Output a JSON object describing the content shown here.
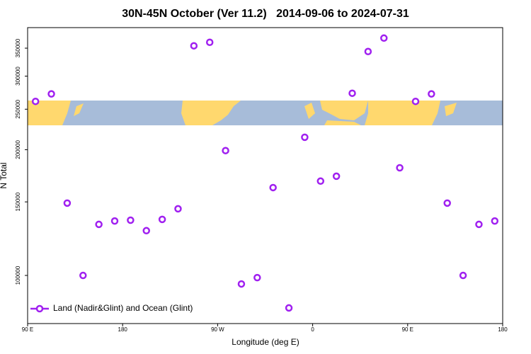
{
  "chart_data": {
    "type": "scatter",
    "title": "30N-45N October (Ver 11.2)   2014-09-06 to 2024-07-31",
    "x_label": "Longitude (deg E)",
    "y_label": "N Total",
    "series": [
      {
        "name": "Land (Nadir&Glint) and Ocean (Glint)",
        "color": "#a020f0",
        "x": [
          97.5,
          112.5,
          127.5,
          142.5,
          157.5,
          172.5,
          187.5,
          202.5,
          217.5,
          232.5,
          247.5,
          262.5,
          277.5,
          292.5,
          307.5,
          322.5,
          337.5,
          352.5,
          367.5,
          382.5,
          397.5,
          412.5,
          427.5,
          442.5,
          457.5,
          472.5,
          487.5,
          502.5,
          517.5,
          532.5
        ],
        "values": [
          261000,
          272000,
          149000,
          100000,
          132500,
          135000,
          135600,
          128000,
          136200,
          144400,
          354600,
          361500,
          199000,
          95400,
          98800,
          162300,
          83600,
          214200,
          168200,
          172800,
          273000,
          343600,
          370000,
          181000,
          261000,
          272000,
          149000,
          100000,
          132500,
          135000
        ]
      }
    ],
    "xlim": [
      90,
      540
    ],
    "xticks": [
      {
        "value": 90,
        "label": "90 E"
      },
      180,
      {
        "value": 270,
        "label": "90 W"
      },
      {
        "value": 360,
        "label": "0"
      },
      {
        "value": 450,
        "label": "90 E"
      },
      {
        "value": 540,
        "label": "180"
      }
    ],
    "ylim": [
      76700,
      392000
    ],
    "yticks": [
      100000,
      150000,
      200000,
      250000,
      300000,
      350000
    ],
    "log_y": true,
    "legend": "bottom-left"
  }
}
